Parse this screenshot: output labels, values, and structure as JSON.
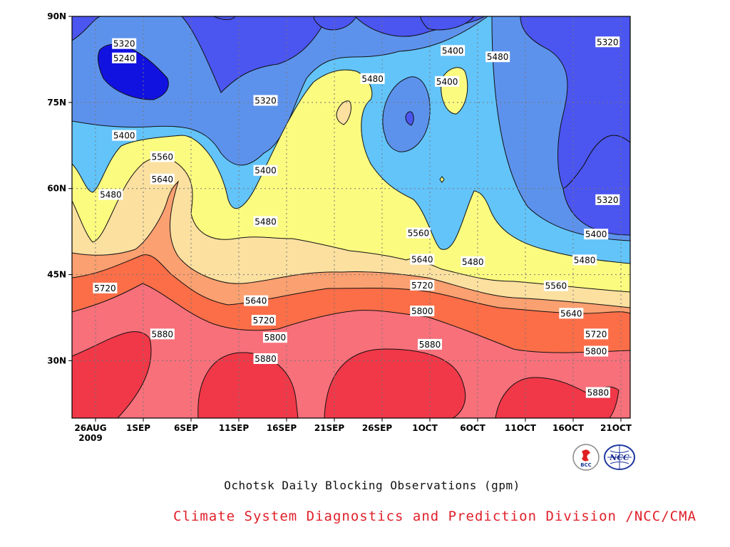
{
  "chart_data": {
    "type": "contour",
    "title": "",
    "x_tick_labels": [
      "26AUG\n2009",
      "1SEP",
      "6SEP",
      "11SEP",
      "16SEP",
      "21SEP",
      "26SEP",
      "1OCT",
      "6OCT",
      "11OCT",
      "16OCT",
      "21OCT"
    ],
    "y_tick_labels": [
      "30N",
      "45N",
      "60N",
      "75N",
      "90N"
    ],
    "ylim": [
      20,
      90
    ],
    "contour_levels": [
      5240,
      5320,
      5400,
      5480,
      5560,
      5640,
      5720,
      5800,
      5880
    ],
    "band_colors": [
      "#1212e0",
      "#4b55f0",
      "#5d92ec",
      "#63c4fa",
      "#fbfb80",
      "#fbe0a0",
      "#fba070",
      "#fb6e48",
      "#f7707a",
      "#f03848"
    ],
    "contour_labels": [
      {
        "text": "5320",
        "day": 3.0,
        "lat": 85.2
      },
      {
        "text": "5240",
        "day": 3.0,
        "lat": 82.7
      },
      {
        "text": "5400",
        "day": 3.0,
        "lat": 69.2
      },
      {
        "text": "5480",
        "day": 1.6,
        "lat": 58.9
      },
      {
        "text": "5560",
        "day": 7.0,
        "lat": 65.5
      },
      {
        "text": "5640",
        "day": 7.0,
        "lat": 61.6
      },
      {
        "text": "5720",
        "day": 1.0,
        "lat": 42.6
      },
      {
        "text": "5880",
        "day": 7.0,
        "lat": 34.6
      },
      {
        "text": "5320",
        "day": 17.8,
        "lat": 75.3
      },
      {
        "text": "5400",
        "day": 17.8,
        "lat": 63.1
      },
      {
        "text": "5480",
        "day": 17.8,
        "lat": 54.2
      },
      {
        "text": "5640",
        "day": 16.8,
        "lat": 40.4
      },
      {
        "text": "5720",
        "day": 17.6,
        "lat": 37.0
      },
      {
        "text": "5800",
        "day": 18.8,
        "lat": 34.0
      },
      {
        "text": "5880",
        "day": 17.8,
        "lat": 30.3
      },
      {
        "text": "5480",
        "day": 29.0,
        "lat": 79.1
      },
      {
        "text": "5400",
        "day": 37.4,
        "lat": 84.0
      },
      {
        "text": "5400",
        "day": 36.8,
        "lat": 78.6
      },
      {
        "text": "5480",
        "day": 42.1,
        "lat": 82.9
      },
      {
        "text": "5560",
        "day": 33.8,
        "lat": 52.2
      },
      {
        "text": "5640",
        "day": 34.2,
        "lat": 47.6
      },
      {
        "text": "5720",
        "day": 34.2,
        "lat": 43.1
      },
      {
        "text": "5800",
        "day": 34.2,
        "lat": 38.6
      },
      {
        "text": "5880",
        "day": 35.0,
        "lat": 32.8
      },
      {
        "text": "5480",
        "day": 39.5,
        "lat": 47.2
      },
      {
        "text": "5320",
        "day": 53.6,
        "lat": 85.5
      },
      {
        "text": "5320",
        "day": 53.6,
        "lat": 58.0
      },
      {
        "text": "5400",
        "day": 52.4,
        "lat": 52.0
      },
      {
        "text": "5480",
        "day": 51.2,
        "lat": 47.5
      },
      {
        "text": "5560",
        "day": 48.2,
        "lat": 43.0
      },
      {
        "text": "5640",
        "day": 49.8,
        "lat": 38.2
      },
      {
        "text": "5720",
        "day": 52.4,
        "lat": 34.6
      },
      {
        "text": "5800",
        "day": 52.4,
        "lat": 31.6
      },
      {
        "text": "5880",
        "day": 52.6,
        "lat": 24.4
      }
    ],
    "caption": "Ochotsk Daily Blocking Observations (gpm)",
    "grid": true
  },
  "footer": {
    "credit": "Climate System Diagnostics and Prediction Division /NCC/CMA",
    "logo_left_text": "BCC",
    "logo_right_text": "NCC"
  }
}
